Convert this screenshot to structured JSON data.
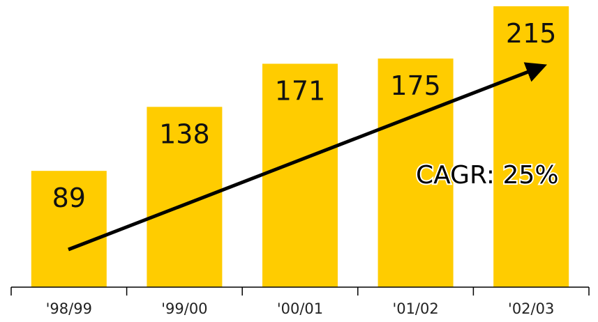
{
  "chart_data": {
    "type": "bar",
    "categories": [
      "'98/99",
      "'99/00",
      "'00/01",
      "'01/02",
      "'02/03"
    ],
    "values": [
      89,
      138,
      171,
      175,
      215
    ],
    "title": "",
    "xlabel": "",
    "ylabel": "",
    "ylim": [
      0,
      215
    ],
    "grid": false,
    "legend": "none",
    "bar_color": "#FFCC00",
    "annotation": {
      "text": "CAGR: 25%",
      "type": "trend-arrow"
    }
  }
}
